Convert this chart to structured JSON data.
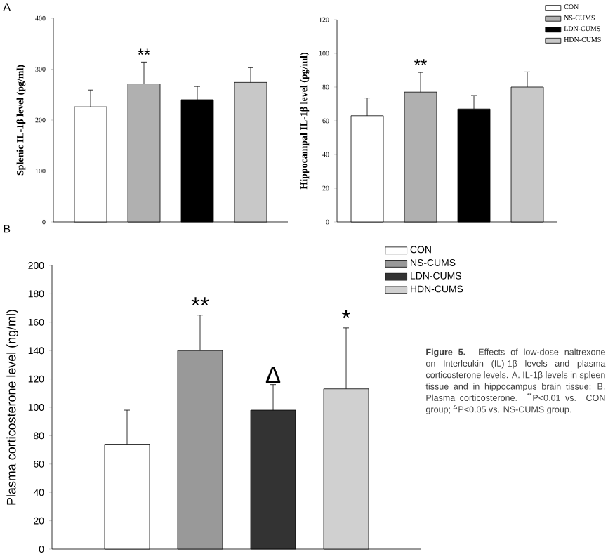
{
  "chart_data": [
    {
      "type": "bar",
      "title": "A",
      "ylabel": "Splenic IL-1β level  (pg/ml)",
      "categories": [
        null
      ],
      "ylim": [
        0,
        400
      ],
      "yticks": [
        0,
        100,
        200,
        300,
        400
      ],
      "legend": false,
      "series": [
        {
          "color": "#ffffff",
          "values": [
            226
          ],
          "errors": [
            33
          ]
        },
        {
          "color": "#b0b0b0",
          "values": [
            271
          ],
          "errors": [
            43
          ],
          "value_labels": [
            "**"
          ]
        },
        {
          "color": "#000000",
          "values": [
            240
          ],
          "errors": [
            26
          ]
        },
        {
          "color": "#c8c8c8",
          "values": [
            274
          ],
          "errors": [
            29
          ]
        }
      ]
    },
    {
      "type": "bar",
      "ylabel": "Hippocampal IL-1β level  (pg/ml)",
      "categories": [
        null
      ],
      "ylim": [
        0,
        120
      ],
      "yticks": [
        0,
        20,
        40,
        60,
        80,
        100,
        120
      ],
      "legend": "top right",
      "series": [
        {
          "name": "CON",
          "color": "#ffffff",
          "values": [
            63
          ],
          "errors": [
            10.5
          ]
        },
        {
          "name": "NS-CUMS",
          "color": "#b0b0b0",
          "values": [
            77
          ],
          "errors": [
            11.7
          ],
          "value_labels": [
            "**"
          ]
        },
        {
          "name": "LDN-CUMS",
          "color": "#000000",
          "values": [
            67
          ],
          "errors": [
            8
          ]
        },
        {
          "name": "HDN-CUMS",
          "color": "#c8c8c8",
          "values": [
            80
          ],
          "errors": [
            9
          ]
        }
      ]
    },
    {
      "type": "bar",
      "title": "B",
      "ylabel": "Plasma corticosterone level  (ng/ml)",
      "categories": [
        null
      ],
      "ylim": [
        0,
        200
      ],
      "yticks": [
        0,
        20,
        40,
        60,
        80,
        100,
        120,
        140,
        160,
        180,
        200
      ],
      "legend": "top right",
      "series": [
        {
          "name": "CON",
          "color": "#ffffff",
          "values": [
            74
          ],
          "errors": [
            24
          ]
        },
        {
          "name": "NS-CUMS",
          "color": "#999999",
          "values": [
            140
          ],
          "errors": [
            25
          ],
          "value_labels": [
            "**"
          ]
        },
        {
          "name": "LDN-CUMS",
          "color": "#333333",
          "values": [
            98
          ],
          "errors": [
            18
          ],
          "value_labels": [
            "Δ"
          ]
        },
        {
          "name": "HDN-CUMS",
          "color": "#d0d0d0",
          "values": [
            113
          ],
          "errors": [
            43
          ],
          "value_labels": [
            "*"
          ]
        }
      ],
      "annotations": [
        "**Figure 5.** Effects of low-dose naltrexone on Interleukin (IL)-1β levels and plasma corticosterone levels. A. IL-1β levels in spleen tissue and in hippocampus brain tissue; B. Plasma corticosterone. $^{**}$P<0.01 vs. CON group; $^{Δ}$P<0.05 vs. NS-CUMS group."
      ]
    }
  ]
}
